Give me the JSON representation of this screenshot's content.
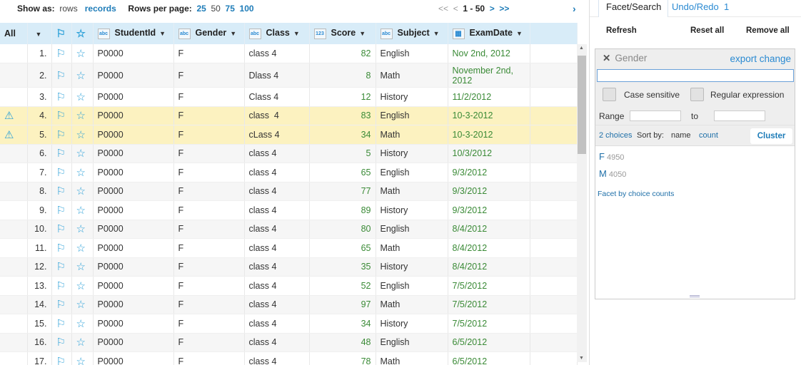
{
  "topbar": {
    "show_as": "Show as:",
    "rows": "rows",
    "records": "records",
    "rows_per_page": "Rows per page:",
    "sizes": [
      "25",
      "50",
      "75",
      "100"
    ],
    "first": "<<",
    "prev": "<",
    "range": "1 - 50",
    "next": ">",
    "last": ">>",
    "collapse": "›"
  },
  "columns": {
    "all": "All",
    "studentid": "StudentId",
    "gender": "Gender",
    "class": "Class",
    "score": "Score",
    "subject": "Subject",
    "examdate": "ExamDate",
    "type_abc": "abc",
    "type_num": "123"
  },
  "rows": [
    {
      "n": "1.",
      "id": "P0000",
      "g": "F",
      "c": "class 4",
      "s": "82",
      "sub": "English",
      "d": "Nov 2nd, 2012",
      "warn": false
    },
    {
      "n": "2.",
      "id": "P0000",
      "g": "F",
      "c": "Dlass 4",
      "s": "8",
      "sub": "Math",
      "d": "November 2nd, 2012",
      "warn": false
    },
    {
      "n": "3.",
      "id": "P0000",
      "g": "F",
      "c": "Class 4",
      "s": "12",
      "sub": "History",
      "d": "11/2/2012",
      "warn": false
    },
    {
      "n": "4.",
      "id": "P0000",
      "g": "F",
      "c": "class  4",
      "s": "83",
      "sub": "English",
      "d": "10-3-2012",
      "warn": true
    },
    {
      "n": "5.",
      "id": "P0000",
      "g": "F",
      "c": "cLass 4",
      "s": "34",
      "sub": "Math",
      "d": "10-3-2012",
      "warn": true
    },
    {
      "n": "6.",
      "id": "P0000",
      "g": "F",
      "c": "class 4",
      "s": "5",
      "sub": "History",
      "d": "10/3/2012",
      "warn": false
    },
    {
      "n": "7.",
      "id": "P0000",
      "g": "F",
      "c": "class 4",
      "s": "65",
      "sub": "English",
      "d": "9/3/2012",
      "warn": false
    },
    {
      "n": "8.",
      "id": "P0000",
      "g": "F",
      "c": "class 4",
      "s": "77",
      "sub": "Math",
      "d": "9/3/2012",
      "warn": false
    },
    {
      "n": "9.",
      "id": "P0000",
      "g": "F",
      "c": "class 4",
      "s": "89",
      "sub": "History",
      "d": "9/3/2012",
      "warn": false
    },
    {
      "n": "10.",
      "id": "P0000",
      "g": "F",
      "c": "class 4",
      "s": "80",
      "sub": "English",
      "d": "8/4/2012",
      "warn": false
    },
    {
      "n": "11.",
      "id": "P0000",
      "g": "F",
      "c": "class 4",
      "s": "65",
      "sub": "Math",
      "d": "8/4/2012",
      "warn": false
    },
    {
      "n": "12.",
      "id": "P0000",
      "g": "F",
      "c": "class 4",
      "s": "35",
      "sub": "History",
      "d": "8/4/2012",
      "warn": false
    },
    {
      "n": "13.",
      "id": "P0000",
      "g": "F",
      "c": "class 4",
      "s": "52",
      "sub": "English",
      "d": "7/5/2012",
      "warn": false
    },
    {
      "n": "14.",
      "id": "P0000",
      "g": "F",
      "c": "class 4",
      "s": "97",
      "sub": "Math",
      "d": "7/5/2012",
      "warn": false
    },
    {
      "n": "15.",
      "id": "P0000",
      "g": "F",
      "c": "class 4",
      "s": "34",
      "sub": "History",
      "d": "7/5/2012",
      "warn": false
    },
    {
      "n": "16.",
      "id": "P0000",
      "g": "F",
      "c": "class 4",
      "s": "48",
      "sub": "English",
      "d": "6/5/2012",
      "warn": false
    },
    {
      "n": "17.",
      "id": "P0000",
      "g": "F",
      "c": "class 4",
      "s": "78",
      "sub": "Math",
      "d": "6/5/2012",
      "warn": false
    }
  ],
  "panel": {
    "tab_facet": "Facet/Search",
    "tab_undo": "Undo/Redo",
    "undo_count": "1",
    "refresh": "Refresh",
    "reset_all": "Reset all",
    "remove_all": "Remove all",
    "facet": {
      "title": "Gender",
      "export": "export change",
      "search_value": "",
      "case_sensitive": "Case sensitive",
      "regex": "Regular expression",
      "range": "Range",
      "to": "to",
      "choices_count": "2 choices",
      "sort_by": "Sort by:",
      "sort_name": "name",
      "sort_count": "count",
      "cluster": "Cluster",
      "choices": [
        {
          "label": "F",
          "count": "4950"
        },
        {
          "label": "M",
          "count": "4050"
        }
      ],
      "facet_by_counts": "Facet by choice counts"
    }
  },
  "colors": {
    "accent": "#1e7cb8",
    "header_bg": "#d8ecf8",
    "warn_row": "#fcf2c0",
    "value_green": "#3a8a36"
  }
}
